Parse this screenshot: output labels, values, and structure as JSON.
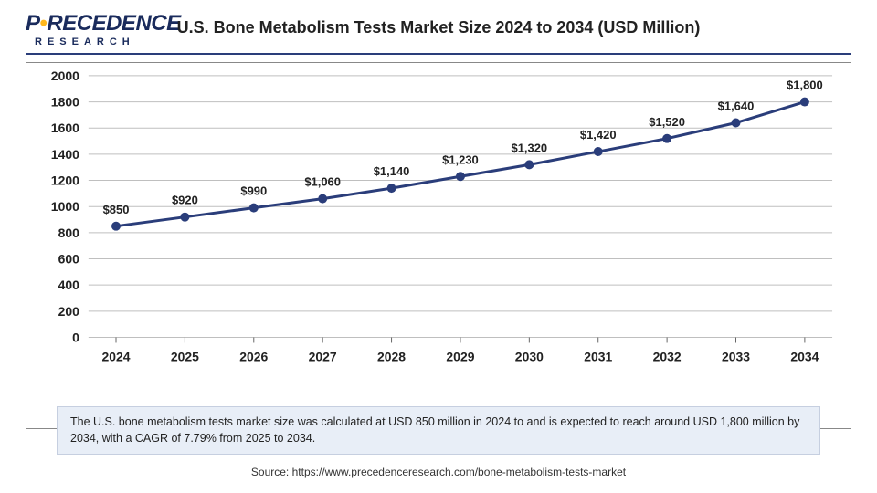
{
  "logo": {
    "prefix": "P",
    "mid": "RECEDENCE",
    "dot_color": "#ffb81c",
    "sub": "RESEARCH",
    "color": "#1a2b5c"
  },
  "chart": {
    "type": "line",
    "title": "U.S. Bone Metabolism Tests Market Size 2024 to 2034 (USD Million)",
    "title_fontsize": 18,
    "title_color": "#222222",
    "categories": [
      "2024",
      "2025",
      "2026",
      "2027",
      "2028",
      "2029",
      "2030",
      "2031",
      "2032",
      "2033",
      "2034"
    ],
    "values": [
      850,
      920,
      990,
      1060,
      1140,
      1230,
      1320,
      1420,
      1520,
      1640,
      1800
    ],
    "labels": [
      "$850",
      "$920",
      "$990",
      "$1,060",
      "$1,140",
      "$1,230",
      "$1,320",
      "$1,420",
      "$1,520",
      "$1,640",
      "$1,800"
    ],
    "ylim": [
      0,
      2000
    ],
    "ytick_step": 200,
    "yticks": [
      "0",
      "200",
      "400",
      "600",
      "800",
      "1000",
      "1200",
      "1400",
      "1600",
      "1800",
      "2000"
    ],
    "line_color": "#2a3d7a",
    "marker_color": "#2a3d7a",
    "marker_size": 5,
    "line_width": 3,
    "grid_color": "#bfbfbf",
    "grid_width": 1,
    "axis_label_fontsize": 14,
    "axis_label_weight": "bold",
    "axis_label_color": "#222222",
    "data_label_fontsize": 13,
    "data_label_weight": "bold",
    "data_label_color": "#222222",
    "background_color": "#ffffff",
    "plot_border": "#888888"
  },
  "caption": "The U.S. bone metabolism tests market size was calculated at USD 850 million in 2024 to and is expected to reach around USD 1,800 million by 2034, with a CAGR of 7.79% from 2025 to 2034.",
  "caption_bg": "#e8eef7",
  "caption_border": "#c6cfe0",
  "source": "Source: https://www.precedenceresearch.com/bone-metabolism-tests-market"
}
